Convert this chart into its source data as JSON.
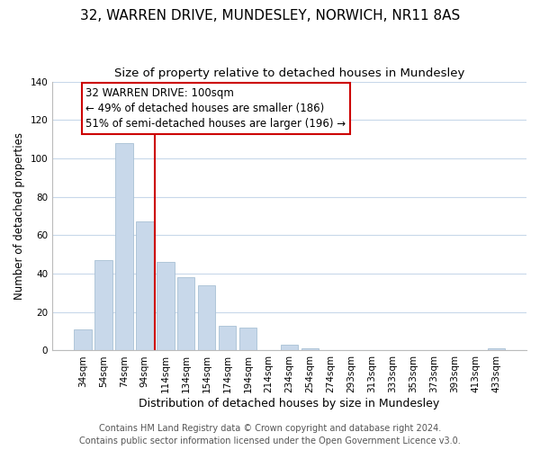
{
  "title": "32, WARREN DRIVE, MUNDESLEY, NORWICH, NR11 8AS",
  "subtitle": "Size of property relative to detached houses in Mundesley",
  "xlabel": "Distribution of detached houses by size in Mundesley",
  "ylabel": "Number of detached properties",
  "footer_line1": "Contains HM Land Registry data © Crown copyright and database right 2024.",
  "footer_line2": "Contains public sector information licensed under the Open Government Licence v3.0.",
  "bar_labels": [
    "34sqm",
    "54sqm",
    "74sqm",
    "94sqm",
    "114sqm",
    "134sqm",
    "154sqm",
    "174sqm",
    "194sqm",
    "214sqm",
    "234sqm",
    "254sqm",
    "274sqm",
    "293sqm",
    "313sqm",
    "333sqm",
    "353sqm",
    "373sqm",
    "393sqm",
    "413sqm",
    "433sqm"
  ],
  "bar_values": [
    11,
    47,
    108,
    67,
    46,
    38,
    34,
    13,
    12,
    0,
    3,
    1,
    0,
    0,
    0,
    0,
    0,
    0,
    0,
    0,
    1
  ],
  "bar_color": "#c8d8ea",
  "bar_edge_color": "#a8c0d4",
  "grid_color": "#c8d8ea",
  "vline_color": "#cc0000",
  "vline_bar_index": 3,
  "ylim": [
    0,
    140
  ],
  "yticks": [
    0,
    20,
    40,
    60,
    80,
    100,
    120,
    140
  ],
  "annotation_line1": "32 WARREN DRIVE: 100sqm",
  "annotation_line2": "← 49% of detached houses are smaller (186)",
  "annotation_line3": "51% of semi-detached houses are larger (196) →",
  "annotation_fontsize": 8.5,
  "title_fontsize": 11,
  "subtitle_fontsize": 9.5,
  "xlabel_fontsize": 9,
  "ylabel_fontsize": 8.5,
  "tick_fontsize": 7.5,
  "footer_fontsize": 7
}
